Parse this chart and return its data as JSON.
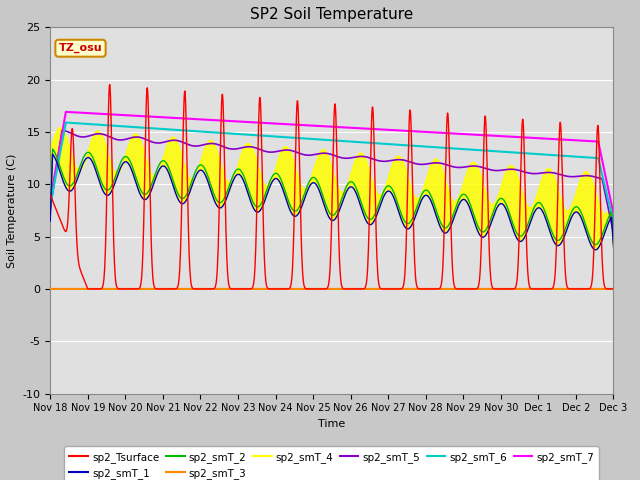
{
  "title": "SP2 Soil Temperature",
  "xlabel": "Time",
  "ylabel": "Soil Temperature (C)",
  "ylim": [
    -10,
    25
  ],
  "x_tick_labels": [
    "Nov 18",
    "Nov 19",
    "Nov 20",
    "Nov 21",
    "Nov 22",
    "Nov 23",
    "Nov 24",
    "Nov 25",
    "Nov 26",
    "Nov 27",
    "Nov 28",
    "Nov 29",
    "Nov 30",
    "Dec 1",
    "Dec 2",
    "Dec 3"
  ],
  "annotation_text": "TZ_osu",
  "annotation_color": "#cc0000",
  "annotation_bg": "#ffffcc",
  "annotation_border": "#cc8800",
  "series": {
    "sp2_Tsurface": {
      "color": "#ff0000",
      "lw": 1.0
    },
    "sp2_smT_1": {
      "color": "#0000bb",
      "lw": 1.0
    },
    "sp2_smT_2": {
      "color": "#00bb00",
      "lw": 1.0
    },
    "sp2_smT_3": {
      "color": "#ff8800",
      "lw": 1.5
    },
    "sp2_smT_4": {
      "color": "#ffff00",
      "lw": 1.0
    },
    "sp2_smT_5": {
      "color": "#8800cc",
      "lw": 1.2
    },
    "sp2_smT_6": {
      "color": "#00cccc",
      "lw": 1.5
    },
    "sp2_smT_7": {
      "color": "#ff00ff",
      "lw": 1.5
    }
  }
}
